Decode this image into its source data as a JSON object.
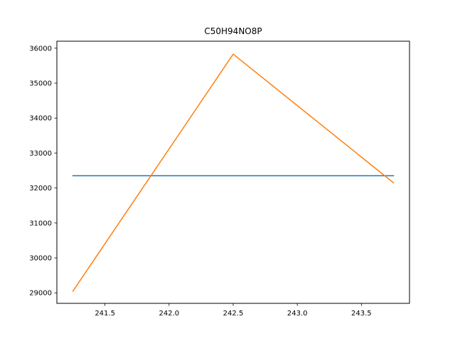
{
  "chart_data": {
    "type": "line",
    "title": "C50H94NO8P",
    "xlabel": "",
    "ylabel": "",
    "xlim": [
      241.125,
      243.875
    ],
    "ylim": [
      28700,
      36200
    ],
    "x_ticks": [
      241.5,
      242.0,
      242.5,
      243.0,
      243.5
    ],
    "x_tick_labels": [
      "241.5",
      "242.0",
      "242.5",
      "243.0",
      "243.5"
    ],
    "y_ticks": [
      29000,
      30000,
      31000,
      32000,
      33000,
      34000,
      35000,
      36000
    ],
    "y_tick_labels": [
      "29000",
      "30000",
      "31000",
      "32000",
      "33000",
      "34000",
      "35000",
      "36000"
    ],
    "grid": false,
    "series": [
      {
        "color": "#1f77b4",
        "x": [
          241.25,
          243.75
        ],
        "y": [
          32350,
          32350
        ]
      },
      {
        "color": "#ff7f0e",
        "x": [
          241.25,
          242.5,
          243.75
        ],
        "y": [
          29050,
          35830,
          32150
        ]
      }
    ]
  }
}
